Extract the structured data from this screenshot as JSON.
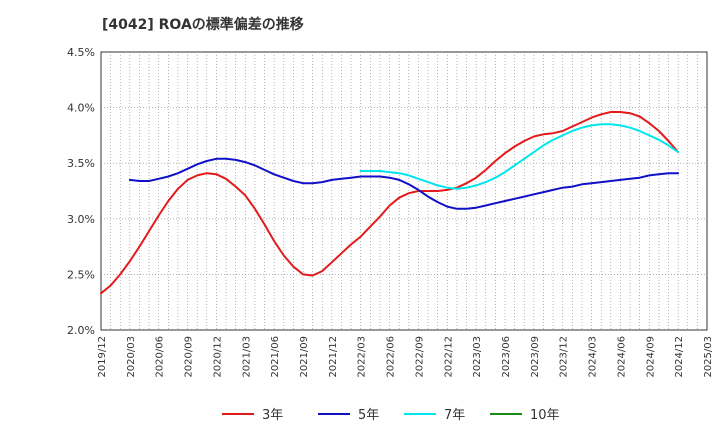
{
  "chart_data": {
    "type": "line",
    "title": "[4042]  ROAの標準偏差の推移",
    "ylim": [
      2.0,
      4.5
    ],
    "yticks": [
      2.0,
      2.5,
      3.0,
      3.5,
      4.0,
      4.5
    ],
    "ytick_labels": [
      "2.0%",
      "2.5%",
      "3.0%",
      "3.5%",
      "4.0%",
      "4.5%"
    ],
    "xticks": [
      "2019/12",
      "2020/03",
      "2020/06",
      "2020/09",
      "2020/12",
      "2021/03",
      "2021/06",
      "2021/09",
      "2021/12",
      "2022/03",
      "2022/06",
      "2022/09",
      "2022/12",
      "2023/03",
      "2023/06",
      "2023/09",
      "2023/12",
      "2024/03",
      "2024/06",
      "2024/09",
      "2024/12",
      "2025/03"
    ],
    "grid": true,
    "legend_position": "bottom",
    "series": [
      {
        "name": "3年",
        "color": "#e31a1c",
        "x": [
          "2019/12",
          "2020/01",
          "2020/02",
          "2020/03",
          "2020/04",
          "2020/05",
          "2020/06",
          "2020/07",
          "2020/08",
          "2020/09",
          "2020/10",
          "2020/11",
          "2020/12",
          "2021/01",
          "2021/02",
          "2021/03",
          "2021/04",
          "2021/05",
          "2021/06",
          "2021/07",
          "2021/08",
          "2021/09",
          "2021/10",
          "2021/11",
          "2021/12",
          "2022/01",
          "2022/02",
          "2022/03",
          "2022/04",
          "2022/05",
          "2022/06",
          "2022/07",
          "2022/08",
          "2022/09",
          "2022/10",
          "2022/11",
          "2022/12",
          "2023/01",
          "2023/02",
          "2023/03",
          "2023/04",
          "2023/05",
          "2023/06",
          "2023/07",
          "2023/08",
          "2023/09",
          "2023/10",
          "2023/11",
          "2023/12",
          "2024/01",
          "2024/02",
          "2024/03",
          "2024/04",
          "2024/05",
          "2024/06",
          "2024/07",
          "2024/08",
          "2024/09",
          "2024/10",
          "2024/11",
          "2024/12"
        ],
        "values": [
          2.33,
          2.4,
          2.5,
          2.62,
          2.75,
          2.89,
          3.03,
          3.16,
          3.27,
          3.35,
          3.39,
          3.41,
          3.4,
          3.36,
          3.29,
          3.21,
          3.09,
          2.95,
          2.8,
          2.67,
          2.57,
          2.5,
          2.49,
          2.53,
          2.61,
          2.69,
          2.77,
          2.84,
          2.93,
          3.02,
          3.12,
          3.19,
          3.23,
          3.25,
          3.25,
          3.25,
          3.26,
          3.28,
          3.32,
          3.37,
          3.44,
          3.52,
          3.59,
          3.65,
          3.7,
          3.74,
          3.76,
          3.77,
          3.79,
          3.83,
          3.87,
          3.91,
          3.94,
          3.96,
          3.96,
          3.95,
          3.92,
          3.86,
          3.79,
          3.7,
          3.6
        ]
      },
      {
        "name": "5年",
        "color": "#1010c8",
        "x": [
          "2020/03",
          "2020/04",
          "2020/05",
          "2020/06",
          "2020/07",
          "2020/08",
          "2020/09",
          "2020/10",
          "2020/11",
          "2020/12",
          "2021/01",
          "2021/02",
          "2021/03",
          "2021/04",
          "2021/05",
          "2021/06",
          "2021/07",
          "2021/08",
          "2021/09",
          "2021/10",
          "2021/11",
          "2021/12",
          "2022/01",
          "2022/02",
          "2022/03",
          "2022/04",
          "2022/05",
          "2022/06",
          "2022/07",
          "2022/08",
          "2022/09",
          "2022/10",
          "2022/11",
          "2022/12",
          "2023/01",
          "2023/02",
          "2023/03",
          "2023/04",
          "2023/05",
          "2023/06",
          "2023/07",
          "2023/08",
          "2023/09",
          "2023/10",
          "2023/11",
          "2023/12",
          "2024/01",
          "2024/02",
          "2024/03",
          "2024/04",
          "2024/05",
          "2024/06",
          "2024/07",
          "2024/08",
          "2024/09",
          "2024/10",
          "2024/11",
          "2024/12"
        ],
        "values": [
          3.35,
          3.34,
          3.34,
          3.36,
          3.38,
          3.41,
          3.45,
          3.49,
          3.52,
          3.54,
          3.54,
          3.53,
          3.51,
          3.48,
          3.44,
          3.4,
          3.37,
          3.34,
          3.32,
          3.32,
          3.33,
          3.35,
          3.36,
          3.37,
          3.38,
          3.38,
          3.38,
          3.37,
          3.35,
          3.31,
          3.26,
          3.2,
          3.15,
          3.11,
          3.09,
          3.09,
          3.1,
          3.12,
          3.14,
          3.16,
          3.18,
          3.2,
          3.22,
          3.24,
          3.26,
          3.28,
          3.29,
          3.31,
          3.32,
          3.33,
          3.34,
          3.35,
          3.36,
          3.37,
          3.39,
          3.4,
          3.41,
          3.41
        ]
      },
      {
        "name": "7年",
        "color": "#00e5ee",
        "x": [
          "2022/03",
          "2022/04",
          "2022/05",
          "2022/06",
          "2022/07",
          "2022/08",
          "2022/09",
          "2022/10",
          "2022/11",
          "2022/12",
          "2023/01",
          "2023/02",
          "2023/03",
          "2023/04",
          "2023/05",
          "2023/06",
          "2023/07",
          "2023/08",
          "2023/09",
          "2023/10",
          "2023/11",
          "2023/12",
          "2024/01",
          "2024/02",
          "2024/03",
          "2024/04",
          "2024/05",
          "2024/06",
          "2024/07",
          "2024/08",
          "2024/09",
          "2024/10",
          "2024/11",
          "2024/12"
        ],
        "values": [
          3.43,
          3.43,
          3.43,
          3.42,
          3.41,
          3.39,
          3.36,
          3.33,
          3.3,
          3.28,
          3.27,
          3.28,
          3.3,
          3.33,
          3.37,
          3.42,
          3.48,
          3.54,
          3.6,
          3.66,
          3.71,
          3.75,
          3.79,
          3.82,
          3.84,
          3.85,
          3.85,
          3.84,
          3.82,
          3.79,
          3.75,
          3.71,
          3.66,
          3.6
        ]
      },
      {
        "name": "10年",
        "color": "#1a8a1a",
        "x": [],
        "values": []
      }
    ]
  }
}
